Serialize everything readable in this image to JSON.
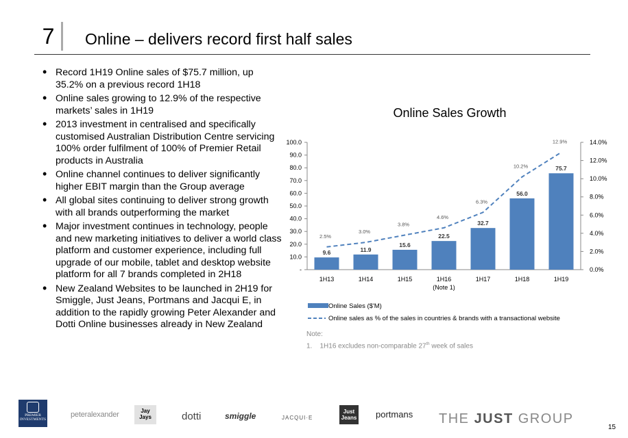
{
  "slide": {
    "number": "7",
    "title": "Online – delivers record first half sales",
    "page_number": "15"
  },
  "bullets": [
    "Record 1H19 Online sales of $75.7 million, up 35.2% on a previous record 1H18",
    "Online sales growing to 12.9% of the respective markets’ sales in 1H19",
    "2013 investment in centralised and specifically customised Australian Distribution Centre servicing 100% order fulfilment of 100% of Premier Retail products in Australia",
    "Online channel continues to deliver significantly higher EBIT margin than the Group average",
    "All global sites continuing to deliver strong growth with all brands outperforming the market",
    "Major investment continues in technology, people and new marketing initiatives to deliver a world class platform and customer experience, including full upgrade of our mobile, tablet and desktop website platform for all 7 brands completed in 2H18",
    "New Zealand Websites to be launched in 2H19 for Smiggle, Just Jeans, Portmans and Jacqui E, in addition to the rapidly growing Peter Alexander and Dotti Online businesses already in New Zealand"
  ],
  "chart_data": {
    "type": "bar",
    "title": "Online Sales Growth",
    "categories": [
      "1H13",
      "1H14",
      "1H15",
      "1H16",
      "1H17",
      "1H18",
      "1H19"
    ],
    "category_sublabels": [
      "",
      "",
      "",
      "(Note 1)",
      "",
      "",
      ""
    ],
    "series": [
      {
        "name": "Online Sales ($'M)",
        "type": "bar",
        "axis": "left",
        "values": [
          9.6,
          11.9,
          15.6,
          22.5,
          32.7,
          56.0,
          75.7
        ],
        "labels": [
          "9.6",
          "11.9",
          "15.6",
          "22.5",
          "32.7",
          "56.0",
          "75.7"
        ],
        "color": "#4f81bd"
      },
      {
        "name": "Online sales as % of the sales in countries & brands with a transactional website",
        "type": "line",
        "style": "dashed",
        "axis": "right",
        "values": [
          2.5,
          3.0,
          3.8,
          4.6,
          6.3,
          10.2,
          12.9
        ],
        "labels": [
          "2.5%",
          "3.0%",
          "3.8%",
          "4.6%",
          "6.3%",
          "10.2%",
          "12.9%"
        ],
        "color": "#4f81bd"
      }
    ],
    "y_left": {
      "ylim": [
        0,
        100
      ],
      "ticks": [
        "-",
        "10.0",
        "20.0",
        "30.0",
        "40.0",
        "50.0",
        "60.0",
        "70.0",
        "80.0",
        "90.0",
        "100.0"
      ]
    },
    "y_right": {
      "ylim": [
        0,
        14
      ],
      "ticks": [
        "0.0%",
        "2.0%",
        "4.0%",
        "6.0%",
        "8.0%",
        "10.0%",
        "12.0%",
        "14.0%"
      ]
    },
    "legend_position": "bottom",
    "grid": false
  },
  "note": {
    "heading": "Note:",
    "item_number": "1.",
    "text_before": "1H16 excludes non-comparable 27",
    "sup": "th",
    "text_after": " week of sales"
  },
  "footer": {
    "premier_logo": "PREMIER INVESTMENTS",
    "brands": {
      "peter": "peteralexander",
      "jayjays": "Jay Jays",
      "dotti": "dotti",
      "smiggle": "smiggle",
      "jacquie": "JACQUI·E",
      "justjeans": "Just Jeans",
      "portmans": "portmans"
    },
    "group": {
      "pre": "THE ",
      "bold": "JUST",
      "post": " GROUP"
    }
  },
  "colors": {
    "bar": "#4f81bd",
    "rule": "#333333"
  }
}
